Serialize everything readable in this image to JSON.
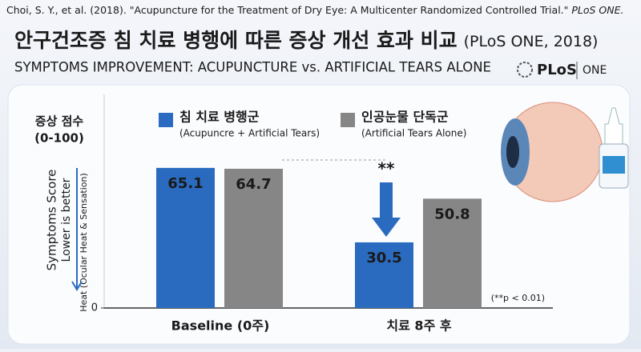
{
  "citation": {
    "text": "Choi, S. Y., et al. (2018). \"Acupuncture for the Treatment of Dry Eye: A Multicenter Randomized Controlled Trial.\"",
    "journal": "PLoS ONE."
  },
  "logo": {
    "name": "PLoS",
    "suffix": "ONE"
  },
  "chart_data": {
    "type": "bar",
    "title": "안구건조증 침 치료 병행에 따른 증상 개선 효과 비교",
    "title_suffix": "(PLoS ONE, 2018)",
    "subtitle": "SYMPTOMS  IMPROVEMENT: ACUPUNCTURE vs. ARTIFICIAL TEARS ALONE",
    "y_label": {
      "ko": [
        "증상 점수",
        "(0-100)"
      ],
      "en": [
        "Symptoms Score",
        "Lower is better",
        "Heat (Ocular Heat & Sensation)"
      ]
    },
    "categories": [
      "Baseline (0주)",
      "치료 8주 후"
    ],
    "series": [
      {
        "name": "침 치료 병행군",
        "note": "(Acupuncre + Artificial Tears)",
        "color": "#2a6bbf",
        "values": [
          65.1,
          30.5
        ]
      },
      {
        "name": "인공눈물 단독군",
        "note": "(Artificial Tears Alone)",
        "color": "#868686",
        "values": [
          64.7,
          50.8
        ]
      }
    ],
    "ylim": [
      0,
      100
    ],
    "yticks": [
      0
    ],
    "annotations": {
      "significance": "**",
      "p_value": "(**p < 0.01)"
    }
  }
}
